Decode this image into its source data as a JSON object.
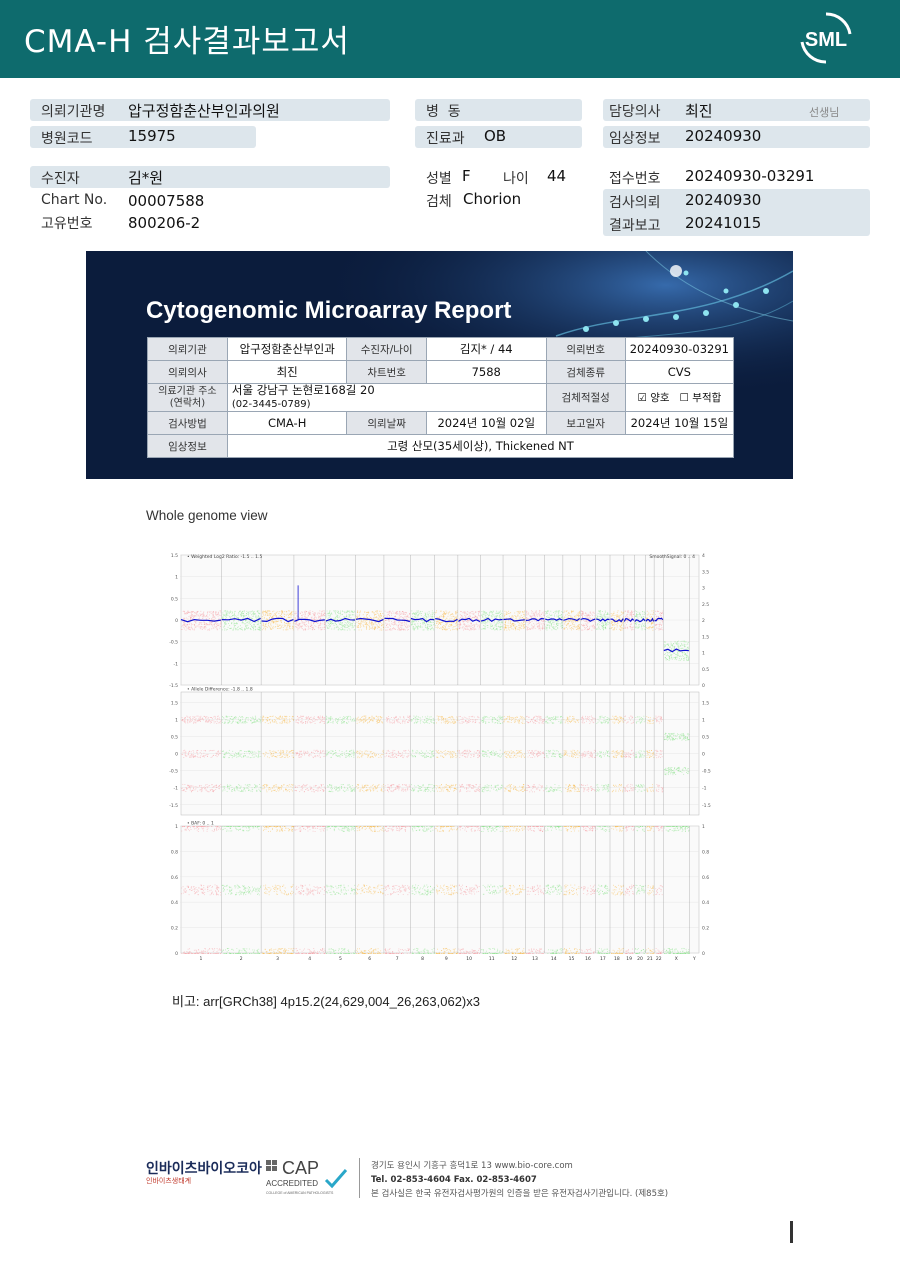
{
  "header": {
    "title": "CMA-H 검사결과보고서",
    "logo_text": "SML",
    "logo_color": "#ffffff",
    "bg_color": "#0e6b6d"
  },
  "info": {
    "req_inst_label": "의뢰기관명",
    "req_inst_value": "압구정함춘산부인과의원",
    "hosp_code_label": "병원코드",
    "hosp_code_value": "15975",
    "ward_label": "병  동",
    "ward_value": "",
    "dept_label": "진료과",
    "dept_value": "OB",
    "doctor_label": "담당의사",
    "doctor_value": "최진",
    "doctor_suffix": "선생님",
    "clinical_label": "임상정보",
    "clinical_value": "20240930",
    "patient_label": "수진자",
    "patient_value": "김*원",
    "sex_label": "성별",
    "sex_value": "F",
    "age_label": "나이",
    "age_value": "44",
    "receipt_label": "접수번호",
    "receipt_value": "20240930-03291",
    "chart_label": "Chart No.",
    "chart_value": "00007588",
    "specimen_label": "검체",
    "specimen_value": "Chorion",
    "test_req_label": "검사의뢰",
    "test_req_value": "20240930",
    "uid_label": "고유번호",
    "uid_value": "800206-2",
    "result_label": "결과보고",
    "result_value": "20241015"
  },
  "report": {
    "title": "Cytogenomic Microarray Report",
    "r1": {
      "h1": "의뢰기관",
      "v1": "압구정함춘산부인과",
      "h2": "수진자/나이",
      "v2": "김지* / 44",
      "h3": "의뢰번호",
      "v3": "20240930-03291"
    },
    "r2": {
      "h1": "의뢰의사",
      "v1": "최진",
      "h2": "차트번호",
      "v2": "7588",
      "h3": "검체종류",
      "v3": "CVS"
    },
    "r3": {
      "h1a": "의료기관 주소",
      "h1b": "(연락처)",
      "addr": "서울 강남구 논현로168길 20",
      "phone": "(02-3445-0789)",
      "h3": "검체적절성",
      "opt_good": "☑ 양호",
      "opt_bad": "☐ 부적합"
    },
    "r4": {
      "h1": "검사방법",
      "v1": "CMA-H",
      "h2": "의뢰날짜",
      "v2": "2024년 10월 02일",
      "h3": "보고일자",
      "v3": "2024년 10월 15일"
    },
    "r5": {
      "h1": "임상정보",
      "v1": "고령 산모(35세이상), Thickened NT"
    }
  },
  "chart_data": {
    "type": "scatter",
    "title": "Whole genome view",
    "panels": [
      {
        "label": "Weighted Log2 Ratio: -1.5 .. 1.5",
        "right_label": "SmoothSignal: 0 .. 4",
        "ylim": [
          -1.5,
          1.5
        ],
        "yticks": [
          "1.5",
          "1",
          "0.5",
          "0",
          "-0.5",
          "-1",
          "-1.5"
        ],
        "yticks_right": [
          "4",
          "3.5",
          "3",
          "2.5",
          "2",
          "1.5",
          "1",
          "0.5",
          "0"
        ]
      },
      {
        "label": "Allele Difference: -1.8 .. 1.8",
        "ylim": [
          -1.8,
          1.8
        ],
        "yticks": [
          "1.5",
          "1",
          "0.5",
          "0",
          "-0.5",
          "-1",
          "-1.5"
        ],
        "yticks_right": [
          "1.5",
          "1",
          "0.5",
          "0",
          "-0.5",
          "-1",
          "-1.5"
        ]
      },
      {
        "label": "BAF: 0 .. 1",
        "ylim": [
          0,
          1
        ],
        "yticks": [
          "1",
          "0.8",
          "0.6",
          "0.4",
          "0.2",
          "0"
        ],
        "yticks_right": [
          "1",
          "0.8",
          "0.6",
          "0.4",
          "0.2",
          "0"
        ]
      }
    ],
    "chromosomes": [
      "1",
      "2",
      "3",
      "4",
      "5",
      "6",
      "7",
      "8",
      "9",
      "10",
      "11",
      "12",
      "13",
      "14",
      "15",
      "16",
      "17",
      "18",
      "19",
      "20",
      "21",
      "22",
      "X",
      "Y"
    ],
    "chrom_size_mb": [
      248,
      242,
      198,
      190,
      181,
      171,
      159,
      145,
      138,
      134,
      135,
      133,
      114,
      107,
      102,
      90,
      83,
      80,
      59,
      64,
      47,
      51,
      156,
      57
    ],
    "chrom_colors": [
      "#f6a3a8",
      "#8fe38f",
      "#f8c05a",
      "#f6a3a8",
      "#8fe38f",
      "#f8c05a",
      "#f6a3a8",
      "#8fe38f",
      "#f8c05a",
      "#f6a3a8",
      "#8fe38f",
      "#f8c05a",
      "#f6a3a8",
      "#8fe38f",
      "#f8c05a",
      "#f6a3a8",
      "#8fe38f",
      "#f8c05a",
      "#f6a3a8",
      "#8fe38f",
      "#f8c05a",
      "#f6a3a8",
      "#8fe38f",
      "#f8c05a"
    ],
    "smooth_signal_color": "#1010d0",
    "log2_level_autosome": 0,
    "log2_level_x": -0.7,
    "log2_peak_chr4_p": 0.8,
    "x_smooth_signal": 1
  },
  "remarks": {
    "label": "비고:",
    "value": "arr[GRCh38] 4p15.2(24,629,004_26,263,062)x3"
  },
  "footer": {
    "company": "인바이츠바이오코아",
    "company_sub": "인바이츠생태계",
    "cap": "CAP",
    "cap_sub": "ACCREDITED",
    "cap_org": "COLLEGE of AMERICAN PATHOLOGISTS",
    "addr1": "경기도 용인시 기흥구 흥덕1로 13   www.bio-core.com",
    "addr2": "Tel. 02-853-4604   Fax. 02-853-4607",
    "addr3": "본 검사실은 한국 유전자검사평가원의 인증을 받은 유전자검사기관입니다. (제85호)"
  }
}
